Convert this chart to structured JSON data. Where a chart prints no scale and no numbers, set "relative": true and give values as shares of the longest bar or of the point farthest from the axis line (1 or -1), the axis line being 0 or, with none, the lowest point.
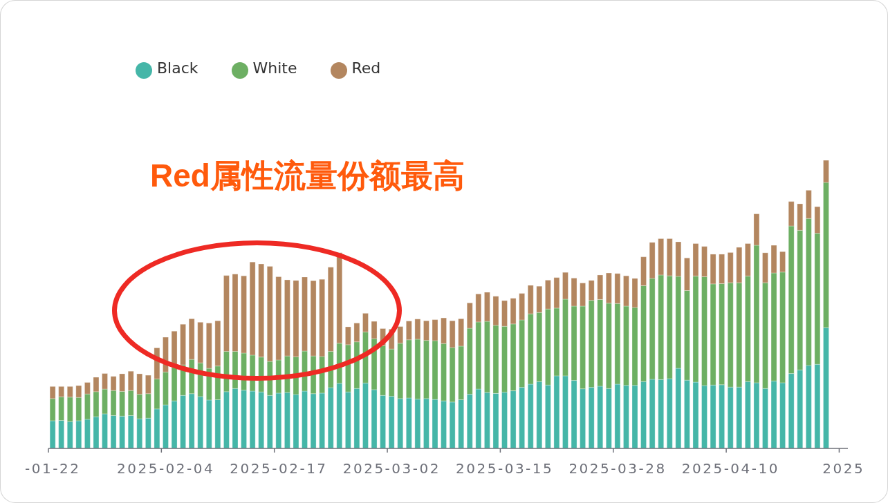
{
  "chart_data": {
    "type": "bar",
    "stacked": true,
    "relative": true,
    "legend": "top left",
    "annotations": [
      "Red属性流量份额最高"
    ],
    "categories": [
      "-01-22",
      null,
      null,
      null,
      null,
      null,
      null,
      null,
      null,
      null,
      null,
      null,
      null,
      "2025-02-04",
      null,
      null,
      null,
      null,
      null,
      null,
      null,
      null,
      null,
      null,
      null,
      null,
      "2025-02-17",
      null,
      null,
      null,
      null,
      null,
      null,
      null,
      null,
      null,
      null,
      null,
      null,
      "2025-03-02",
      null,
      null,
      null,
      null,
      null,
      null,
      null,
      null,
      null,
      null,
      null,
      null,
      "2025-03-15",
      null,
      null,
      null,
      null,
      null,
      null,
      null,
      null,
      null,
      null,
      null,
      null,
      "2025-03-28",
      null,
      null,
      null,
      null,
      null,
      null,
      null,
      null,
      null,
      null,
      null,
      null,
      "2025-04-10",
      null,
      null,
      null,
      null,
      null,
      null,
      null,
      null,
      null,
      null,
      null,
      null,
      "2025"
    ],
    "series": [
      {
        "name": "Black",
        "color": "#45b6a8",
        "values": [
          0.096,
          0.097,
          0.093,
          0.096,
          0.101,
          0.11,
          0.12,
          0.114,
          0.112,
          0.114,
          0.103,
          0.105,
          0.137,
          0.151,
          0.165,
          0.184,
          0.19,
          0.18,
          0.168,
          0.169,
          0.197,
          0.208,
          0.202,
          0.199,
          0.196,
          0.184,
          0.192,
          0.194,
          0.187,
          0.199,
          0.19,
          0.192,
          0.211,
          0.226,
          0.196,
          0.208,
          0.227,
          0.204,
          0.184,
          0.181,
          0.173,
          0.175,
          0.171,
          0.173,
          0.17,
          0.165,
          0.161,
          0.169,
          0.188,
          0.206,
          0.194,
          0.191,
          0.195,
          0.2,
          0.212,
          0.223,
          0.232,
          0.22,
          0.252,
          0.252,
          0.236,
          0.207,
          0.212,
          0.216,
          0.208,
          0.223,
          0.219,
          0.219,
          0.232,
          0.24,
          0.239,
          0.242,
          0.278,
          0.237,
          0.23,
          0.218,
          0.22,
          0.221,
          0.213,
          0.213,
          0.232,
          0.228,
          0.208,
          0.234,
          0.228,
          0.26,
          0.272,
          0.288,
          0.292,
          0.419,
          null,
          null
        ]
      },
      {
        "name": "White",
        "color": "#6daf63",
        "values": [
          0.077,
          0.082,
          0.085,
          0.081,
          0.088,
          0.087,
          0.086,
          0.087,
          0.086,
          0.087,
          0.085,
          0.085,
          0.104,
          0.114,
          0.116,
          0.106,
          0.119,
          0.117,
          0.11,
          0.117,
          0.14,
          0.129,
          0.129,
          0.125,
          0.121,
          0.118,
          0.115,
          0.127,
          0.131,
          0.139,
          0.131,
          0.127,
          0.126,
          0.139,
          0.164,
          0.162,
          0.177,
          0.177,
          0.172,
          0.164,
          0.192,
          0.202,
          0.208,
          0.202,
          0.204,
          0.199,
          0.189,
          0.186,
          0.229,
          0.233,
          0.247,
          0.236,
          0.229,
          0.232,
          0.234,
          0.244,
          0.24,
          0.264,
          0.235,
          0.266,
          0.258,
          0.287,
          0.302,
          0.301,
          0.296,
          0.28,
          0.275,
          0.27,
          0.333,
          0.35,
          0.363,
          0.357,
          0.319,
          0.311,
          0.368,
          0.378,
          0.351,
          0.351,
          0.362,
          0.362,
          0.366,
          0.477,
          0.367,
          0.375,
          0.384,
          0.512,
          0.485,
          0.51,
          0.455,
          0.504,
          null,
          null
        ]
      },
      {
        "name": "Red",
        "color": "#b3865f",
        "values": [
          0.042,
          0.036,
          0.037,
          0.041,
          0.04,
          0.05,
          0.054,
          0.049,
          0.061,
          0.067,
          0.071,
          0.064,
          0.108,
          0.121,
          0.126,
          0.141,
          0.141,
          0.141,
          0.157,
          0.157,
          0.263,
          0.268,
          0.268,
          0.323,
          0.323,
          0.33,
          0.289,
          0.264,
          0.265,
          0.257,
          0.261,
          0.268,
          0.292,
          0.314,
          0.062,
          0.065,
          0.065,
          0.06,
          0.06,
          0.069,
          0.058,
          0.065,
          0.07,
          0.068,
          0.073,
          0.089,
          0.093,
          0.095,
          0.088,
          0.097,
          0.101,
          0.101,
          0.089,
          0.089,
          0.092,
          0.099,
          0.091,
          0.1,
          0.106,
          0.093,
          0.097,
          0.08,
          0.069,
          0.085,
          0.105,
          0.104,
          0.105,
          0.101,
          0.1,
          0.125,
          0.126,
          0.129,
          0.12,
          0.113,
          0.113,
          0.105,
          0.103,
          0.102,
          0.105,
          0.123,
          0.113,
          0.109,
          0.104,
          0.096,
          0.071,
          0.085,
          0.092,
          0.098,
          0.092,
          0.077,
          null,
          null
        ]
      }
    ]
  }
}
